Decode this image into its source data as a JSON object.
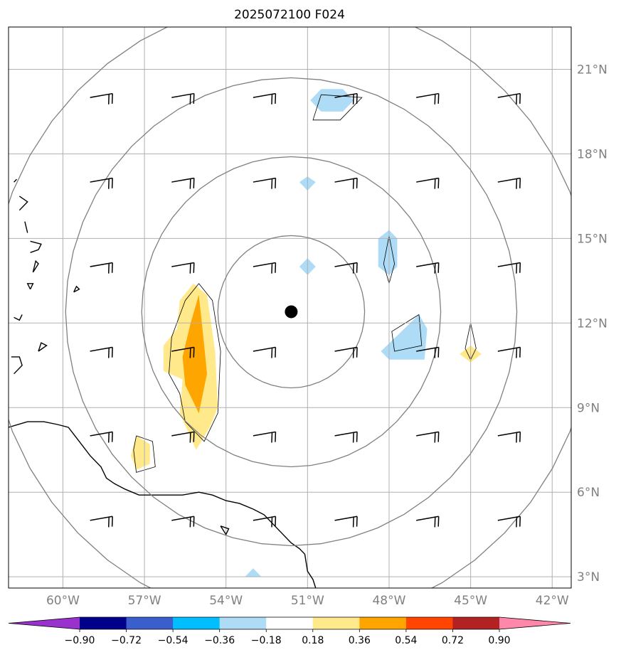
{
  "title": "2025072100 F024",
  "map": {
    "lon_min": -62.0,
    "lon_max": -41.3,
    "lat_min": 2.6,
    "lat_max": 22.5,
    "storm_center": {
      "lon": -51.6,
      "lat": 12.4
    },
    "range_ring_radii_deg": [
      2.7,
      5.5,
      8.3,
      11.1
    ],
    "lat_ticks": [
      {
        "value": 3,
        "label": "3°N"
      },
      {
        "value": 6,
        "label": "6°N"
      },
      {
        "value": 9,
        "label": "9°N"
      },
      {
        "value": 12,
        "label": "12°N"
      },
      {
        "value": 15,
        "label": "15°N"
      },
      {
        "value": 18,
        "label": "18°N"
      },
      {
        "value": 21,
        "label": "21°N"
      }
    ],
    "lon_ticks": [
      {
        "value": -60,
        "label": "60°W"
      },
      {
        "value": -57,
        "label": "57°W"
      },
      {
        "value": -54,
        "label": "54°W"
      },
      {
        "value": -51,
        "label": "51°W"
      },
      {
        "value": -48,
        "label": "48°W"
      },
      {
        "value": -45,
        "label": "45°W"
      },
      {
        "value": -42,
        "label": "42°W"
      }
    ],
    "wind_barbs": {
      "lons": [
        -59,
        -56,
        -53,
        -50,
        -47,
        -44
      ],
      "lats": [
        20,
        17,
        14,
        11,
        8,
        5
      ],
      "default_direction_deg": 80,
      "default_knots": 15
    },
    "shaded_regions": [
      {
        "name": "positive-anomaly-0.18-0.36",
        "color": "#ffe98a",
        "lonlat": [
          [
            -55.2,
            13.4
          ],
          [
            -54.7,
            13.0
          ],
          [
            -54.4,
            11.0
          ],
          [
            -54.3,
            9.0
          ],
          [
            -54.6,
            8.3
          ],
          [
            -55.1,
            7.5
          ],
          [
            -55.7,
            8.8
          ],
          [
            -55.6,
            10.0
          ],
          [
            -56.3,
            10.3
          ],
          [
            -56.3,
            11.2
          ],
          [
            -55.8,
            11.8
          ],
          [
            -55.7,
            12.8
          ]
        ]
      },
      {
        "name": "positive-anomaly-0.36-0.54",
        "color": "#ffa500",
        "lonlat": [
          [
            -55.0,
            13.0
          ],
          [
            -54.8,
            11.2
          ],
          [
            -54.7,
            10.2
          ],
          [
            -55.0,
            8.8
          ],
          [
            -55.5,
            9.8
          ],
          [
            -55.6,
            10.8
          ],
          [
            -55.3,
            12.0
          ]
        ]
      },
      {
        "name": "positive-anomaly-0.18-0.36",
        "color": "#ffe98a",
        "lonlat": [
          [
            -57.3,
            8.0
          ],
          [
            -56.8,
            7.7
          ],
          [
            -56.8,
            7.0
          ],
          [
            -57.3,
            6.8
          ],
          [
            -57.5,
            7.3
          ]
        ]
      },
      {
        "name": "positive-anomaly-0.18-0.36",
        "color": "#ffe98a",
        "lonlat": [
          [
            -45.0,
            11.2
          ],
          [
            -44.6,
            10.9
          ],
          [
            -45.0,
            10.6
          ],
          [
            -45.4,
            10.9
          ]
        ]
      },
      {
        "name": "negative-anomaly-0.36-0.18",
        "color": "#aedcf7",
        "lonlat": [
          [
            -50.5,
            20.3
          ],
          [
            -49.7,
            20.3
          ],
          [
            -49.3,
            19.9
          ],
          [
            -49.7,
            19.5
          ],
          [
            -50.5,
            19.5
          ],
          [
            -50.9,
            19.9
          ]
        ]
      },
      {
        "name": "negative-anomaly-0.36-0.18",
        "color": "#aedcf7",
        "lonlat": [
          [
            -51.0,
            17.2
          ],
          [
            -50.7,
            17.0
          ],
          [
            -51.0,
            16.7
          ],
          [
            -51.3,
            17.0
          ]
        ]
      },
      {
        "name": "negative-anomaly-0.36-0.18",
        "color": "#aedcf7",
        "lonlat": [
          [
            -51.0,
            14.3
          ],
          [
            -50.7,
            14.0
          ],
          [
            -51.0,
            13.7
          ],
          [
            -51.3,
            14.0
          ]
        ]
      },
      {
        "name": "negative-anomaly-0.36-0.18",
        "color": "#aedcf7",
        "lonlat": [
          [
            -48.0,
            15.3
          ],
          [
            -47.7,
            15.0
          ],
          [
            -47.7,
            14.0
          ],
          [
            -48.0,
            13.7
          ],
          [
            -48.4,
            14.0
          ],
          [
            -48.4,
            15.0
          ]
        ]
      },
      {
        "name": "negative-anomaly-0.36-0.18",
        "color": "#aedcf7",
        "lonlat": [
          [
            -46.9,
            12.3
          ],
          [
            -46.6,
            11.8
          ],
          [
            -46.7,
            10.7
          ],
          [
            -48.0,
            10.7
          ],
          [
            -48.3,
            11.0
          ]
        ]
      },
      {
        "name": "negative-anomaly-0.36-0.18",
        "color": "#aedcf7",
        "lonlat": [
          [
            -53.0,
            3.3
          ],
          [
            -52.7,
            3.0
          ],
          [
            -53.3,
            3.0
          ]
        ]
      }
    ],
    "contours": [
      {
        "name": "anomaly-contour",
        "lonlat": [
          [
            -55.0,
            13.4
          ],
          [
            -54.5,
            12.8
          ],
          [
            -54.2,
            11.0
          ],
          [
            -54.3,
            8.8
          ],
          [
            -54.8,
            7.8
          ],
          [
            -55.5,
            8.5
          ],
          [
            -55.7,
            9.5
          ],
          [
            -56.1,
            10.2
          ],
          [
            -56.0,
            11.5
          ],
          [
            -55.5,
            12.8
          ],
          [
            -55.0,
            13.4
          ]
        ]
      },
      {
        "name": "anomaly-contour",
        "lonlat": [
          [
            -57.3,
            8.0
          ],
          [
            -56.7,
            7.8
          ],
          [
            -56.6,
            6.9
          ],
          [
            -57.3,
            6.7
          ],
          [
            -57.4,
            7.5
          ],
          [
            -57.3,
            8.0
          ]
        ]
      },
      {
        "name": "anomaly-contour",
        "lonlat": [
          [
            -50.5,
            20.1
          ],
          [
            -49.0,
            20.0
          ],
          [
            -49.8,
            19.2
          ],
          [
            -50.8,
            19.2
          ],
          [
            -50.5,
            20.1
          ]
        ]
      },
      {
        "name": "anomaly-contour",
        "lonlat": [
          [
            -48.0,
            15.1
          ],
          [
            -47.8,
            14.1
          ],
          [
            -48.0,
            13.4
          ],
          [
            -48.2,
            14.1
          ],
          [
            -48.0,
            15.1
          ]
        ]
      },
      {
        "name": "anomaly-contour",
        "lonlat": [
          [
            -46.9,
            12.3
          ],
          [
            -46.8,
            11.2
          ],
          [
            -47.8,
            11.0
          ],
          [
            -47.9,
            11.7
          ],
          [
            -46.9,
            12.3
          ]
        ]
      },
      {
        "name": "anomaly-contour",
        "lonlat": [
          [
            -45.0,
            12.0
          ],
          [
            -44.8,
            11.1
          ],
          [
            -45.0,
            10.7
          ],
          [
            -45.2,
            11.1
          ],
          [
            -45.0,
            12.0
          ]
        ]
      }
    ],
    "coastlines": [
      [
        [
          -62.0,
          8.3
        ],
        [
          -61.3,
          8.5
        ],
        [
          -60.7,
          8.5
        ],
        [
          -60.2,
          8.4
        ],
        [
          -59.8,
          8.3
        ],
        [
          -59.4,
          7.8
        ],
        [
          -59.0,
          7.3
        ],
        [
          -58.6,
          6.9
        ],
        [
          -58.4,
          6.5
        ],
        [
          -58.1,
          6.3
        ],
        [
          -57.7,
          6.1
        ],
        [
          -57.2,
          5.9
        ],
        [
          -56.8,
          5.9
        ],
        [
          -56.2,
          5.9
        ],
        [
          -55.6,
          5.9
        ],
        [
          -55.0,
          6.0
        ],
        [
          -54.5,
          5.9
        ],
        [
          -54.0,
          5.7
        ],
        [
          -53.5,
          5.6
        ],
        [
          -53.0,
          5.4
        ],
        [
          -52.6,
          5.2
        ],
        [
          -52.2,
          4.8
        ],
        [
          -51.9,
          4.5
        ],
        [
          -51.6,
          4.2
        ],
        [
          -51.3,
          4.0
        ],
        [
          -51.1,
          3.8
        ],
        [
          -51.0,
          3.2
        ],
        [
          -50.8,
          2.9
        ],
        [
          -50.7,
          2.6
        ]
      ],
      [
        [
          -61.8,
          10.2
        ],
        [
          -61.5,
          10.5
        ],
        [
          -61.6,
          10.8
        ],
        [
          -61.9,
          10.8
        ]
      ],
      [
        [
          -60.9,
          11.0
        ],
        [
          -60.6,
          11.2
        ],
        [
          -60.8,
          11.3
        ],
        [
          -60.9,
          11.0
        ]
      ],
      [
        [
          -61.5,
          12.3
        ],
        [
          -61.6,
          12.1
        ],
        [
          -61.8,
          12.2
        ]
      ],
      [
        [
          -61.2,
          13.2
        ],
        [
          -61.1,
          13.4
        ],
        [
          -61.3,
          13.4
        ],
        [
          -61.2,
          13.2
        ]
      ],
      [
        [
          -61.1,
          13.8
        ],
        [
          -60.9,
          14.1
        ],
        [
          -61.0,
          14.2
        ],
        [
          -61.1,
          13.8
        ]
      ],
      [
        [
          -61.2,
          14.5
        ],
        [
          -60.9,
          14.6
        ],
        [
          -60.8,
          14.8
        ],
        [
          -61.2,
          14.9
        ]
      ],
      [
        [
          -61.3,
          15.2
        ],
        [
          -61.4,
          15.6
        ]
      ],
      [
        [
          -61.6,
          16.0
        ],
        [
          -61.3,
          16.3
        ],
        [
          -61.6,
          16.5
        ]
      ],
      [
        [
          -61.8,
          17.0
        ],
        [
          -61.7,
          17.1
        ]
      ],
      [
        [
          -59.6,
          13.1
        ],
        [
          -59.4,
          13.2
        ],
        [
          -59.5,
          13.3
        ],
        [
          -59.6,
          13.1
        ]
      ],
      [
        [
          -54.2,
          4.8
        ],
        [
          -53.9,
          4.7
        ],
        [
          -54.0,
          4.5
        ],
        [
          -54.2,
          4.8
        ]
      ]
    ]
  },
  "colorbar": {
    "colors": [
      "#9932cc",
      "#00008b",
      "#3a5fcd",
      "#00bfff",
      "#aedcf7",
      "#ffffff",
      "#ffe98a",
      "#ffa500",
      "#ff4500",
      "#b22222",
      "#ff88aa"
    ],
    "tick_labels": [
      "−0.90",
      "−0.72",
      "−0.54",
      "−0.36",
      "−0.18",
      "0.18",
      "0.36",
      "0.54",
      "0.72",
      "0.90"
    ]
  }
}
